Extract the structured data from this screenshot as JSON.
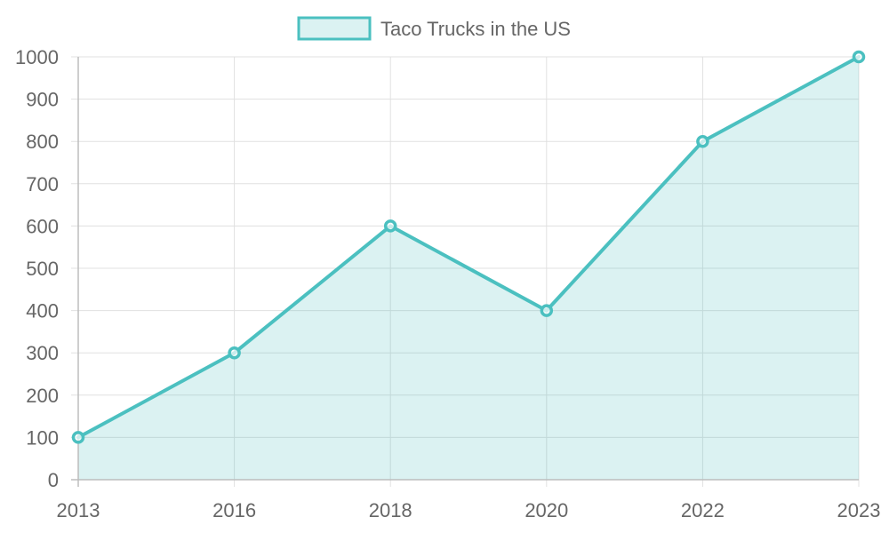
{
  "chart_data": {
    "type": "area",
    "title": "",
    "xlabel": "",
    "ylabel": "",
    "categories": [
      "2013",
      "2016",
      "2018",
      "2020",
      "2022",
      "2023"
    ],
    "series": [
      {
        "name": "Taco Trucks in the US",
        "values": [
          100,
          300,
          600,
          400,
          800,
          1000
        ],
        "border_color": "#4bc0c0",
        "fill_color": "#4bc0c033"
      }
    ],
    "ylim": [
      0,
      1000
    ],
    "y_ticks": [
      0,
      100,
      200,
      300,
      400,
      500,
      600,
      700,
      800,
      900,
      1000
    ],
    "grid": true,
    "legend_position": "top"
  }
}
